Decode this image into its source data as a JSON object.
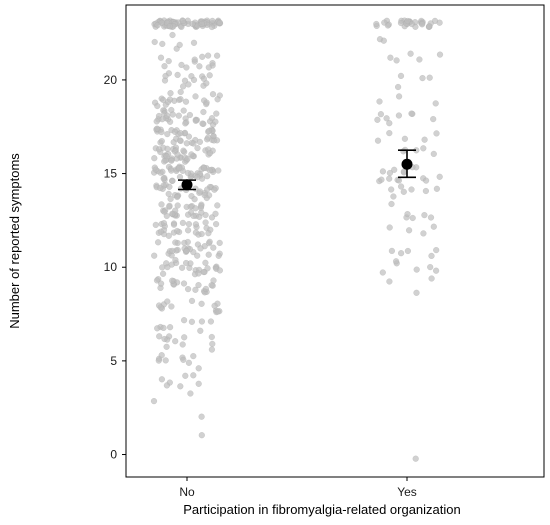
{
  "chart_data": {
    "type": "scatter",
    "title": "",
    "xlabel": "Participation in fibromyalgia-related organization",
    "ylabel": "Number of reported symptoms",
    "categories": [
      "No",
      "Yes"
    ],
    "ylim": [
      -1.2,
      24.0
    ],
    "yticks": [
      0,
      5,
      10,
      15,
      20
    ],
    "grid": false,
    "legend": "none",
    "point_color": "#bdbdbd",
    "summary_color": "#000000",
    "summary": [
      {
        "category": "No",
        "mean": 14.4,
        "ci_low": 14.15,
        "ci_high": 14.65
      },
      {
        "category": "Yes",
        "mean": 15.5,
        "ci_low": 14.8,
        "ci_high": 16.25
      }
    ],
    "points_approx": [
      {
        "category": "No",
        "count": 490
      },
      {
        "category": "Yes",
        "count": 110
      }
    ]
  }
}
